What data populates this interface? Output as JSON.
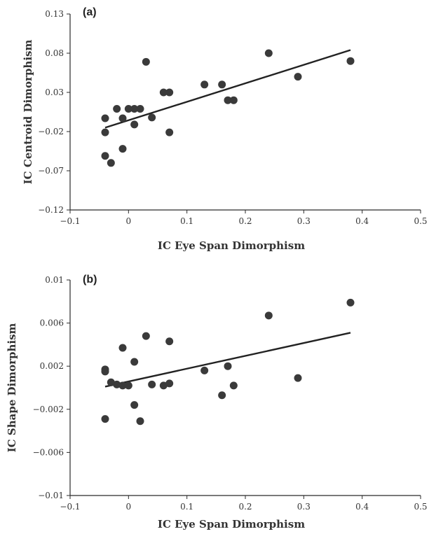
{
  "chart_data": [
    {
      "type": "scatter",
      "panel_label": "(a)",
      "xlabel": "IC Eye Span Dimorphism",
      "ylabel": "IC Centroid  Dimorphism",
      "xlim": [
        -0.1,
        0.5
      ],
      "ylim": [
        -0.12,
        0.13
      ],
      "x_ticks": [
        -0.1,
        0,
        0.1,
        0.2,
        0.3,
        0.4,
        0.5
      ],
      "x_tick_labels": [
        "−0.1",
        "0",
        "0.1",
        "0.2",
        "0.3",
        "0.4",
        "0.5"
      ],
      "y_ticks": [
        0.13,
        0.08,
        0.03,
        -0.02,
        -0.07,
        -0.12
      ],
      "y_tick_labels": [
        "0.13",
        "0.08",
        "0.03",
        "−0.02",
        "−0.07",
        "−0.12"
      ],
      "points": [
        {
          "x": -0.04,
          "y": -0.003
        },
        {
          "x": -0.04,
          "y": -0.021
        },
        {
          "x": -0.04,
          "y": -0.051
        },
        {
          "x": -0.03,
          "y": -0.06
        },
        {
          "x": -0.02,
          "y": 0.009
        },
        {
          "x": -0.01,
          "y": -0.003
        },
        {
          "x": -0.01,
          "y": -0.042
        },
        {
          "x": 0.0,
          "y": 0.009
        },
        {
          "x": 0.01,
          "y": 0.009
        },
        {
          "x": 0.01,
          "y": -0.011
        },
        {
          "x": 0.02,
          "y": 0.009
        },
        {
          "x": 0.03,
          "y": 0.069
        },
        {
          "x": 0.04,
          "y": -0.002
        },
        {
          "x": 0.06,
          "y": 0.03
        },
        {
          "x": 0.07,
          "y": 0.03
        },
        {
          "x": 0.07,
          "y": -0.021
        },
        {
          "x": 0.13,
          "y": 0.04
        },
        {
          "x": 0.16,
          "y": 0.04
        },
        {
          "x": 0.17,
          "y": 0.02
        },
        {
          "x": 0.18,
          "y": 0.02
        },
        {
          "x": 0.24,
          "y": 0.08
        },
        {
          "x": 0.29,
          "y": 0.05
        },
        {
          "x": 0.38,
          "y": 0.07
        }
      ],
      "trendline": {
        "x": [
          -0.04,
          0.38
        ],
        "y": [
          -0.015,
          0.084
        ]
      }
    },
    {
      "type": "scatter",
      "panel_label": "(b)",
      "xlabel": "IC Eye Span Dimorphism",
      "ylabel": "IC Shape Dimorphism",
      "xlim": [
        -0.1,
        0.5
      ],
      "ylim": [
        -0.01,
        0.01
      ],
      "x_ticks": [
        -0.1,
        0,
        0.1,
        0.2,
        0.3,
        0.4,
        0.5
      ],
      "x_tick_labels": [
        "−0.1",
        "0",
        "0.1",
        "0.2",
        "0.3",
        "0.4",
        "0.5"
      ],
      "y_ticks": [
        0.01,
        0.006,
        0.002,
        -0.002,
        -0.006,
        -0.01
      ],
      "y_tick_labels": [
        "0.01",
        "0.006",
        "0.002",
        "−0.002",
        "−0.006",
        "−0.01"
      ],
      "points": [
        {
          "x": -0.04,
          "y": 0.0017
        },
        {
          "x": -0.04,
          "y": 0.0015
        },
        {
          "x": -0.04,
          "y": -0.0029
        },
        {
          "x": -0.03,
          "y": 0.0005
        },
        {
          "x": -0.02,
          "y": 0.0003
        },
        {
          "x": -0.01,
          "y": 0.0037
        },
        {
          "x": -0.01,
          "y": 0.0002
        },
        {
          "x": 0.0,
          "y": 0.0002
        },
        {
          "x": 0.01,
          "y": 0.0024
        },
        {
          "x": 0.01,
          "y": -0.0016
        },
        {
          "x": 0.02,
          "y": -0.0031
        },
        {
          "x": 0.03,
          "y": 0.0048
        },
        {
          "x": 0.04,
          "y": 0.0003
        },
        {
          "x": 0.06,
          "y": 0.0002
        },
        {
          "x": 0.07,
          "y": 0.0043
        },
        {
          "x": 0.07,
          "y": 0.0004
        },
        {
          "x": 0.13,
          "y": 0.0016
        },
        {
          "x": 0.16,
          "y": -0.0007
        },
        {
          "x": 0.17,
          "y": 0.002
        },
        {
          "x": 0.18,
          "y": 0.0002
        },
        {
          "x": 0.24,
          "y": 0.0067
        },
        {
          "x": 0.29,
          "y": 0.0009
        },
        {
          "x": 0.38,
          "y": 0.0079
        }
      ],
      "trendline": {
        "x": [
          -0.04,
          0.38
        ],
        "y": [
          0.0001,
          0.0051
        ]
      }
    }
  ]
}
